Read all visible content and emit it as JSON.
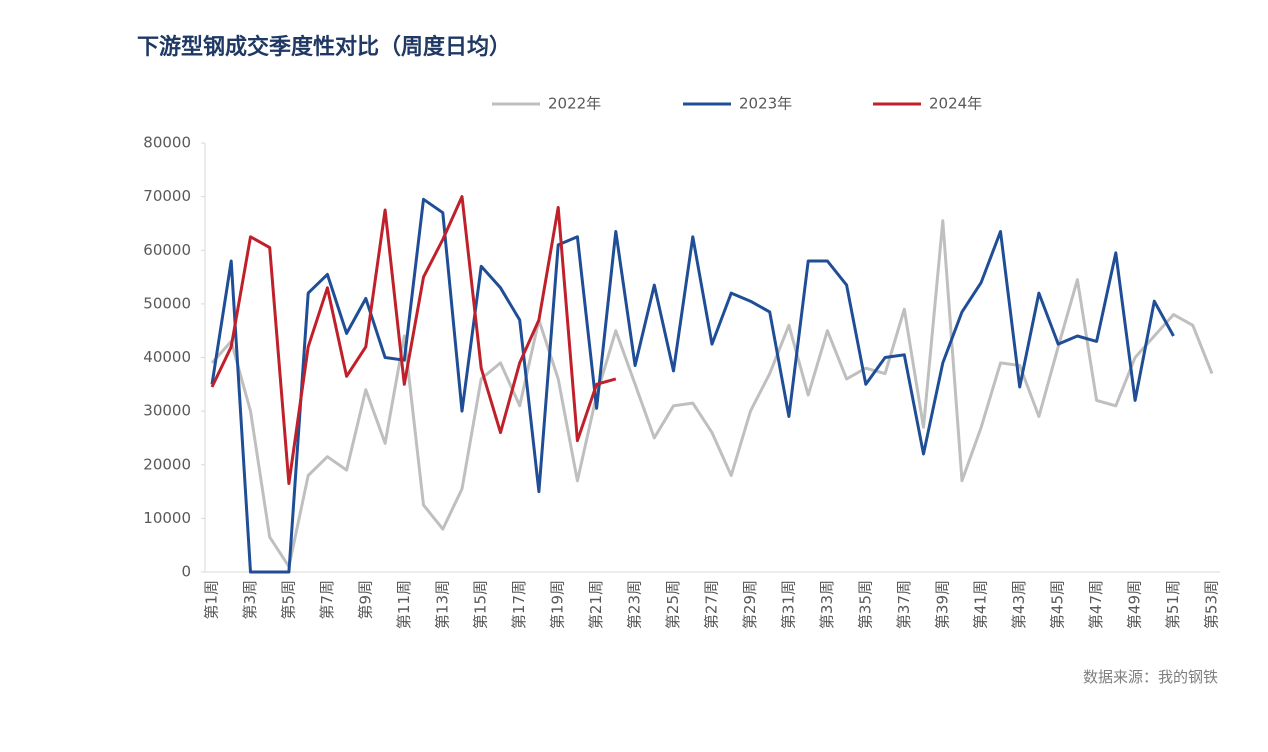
{
  "chart_data": {
    "type": "line",
    "title": "下游型钢成交季度性对比（周度日均）",
    "source": "数据来源：我的钢铁",
    "categories": [
      "第1周",
      null,
      "第3周",
      null,
      "第5周",
      null,
      "第7周",
      null,
      "第9周",
      null,
      "第11周",
      null,
      "第13周",
      null,
      "第15周",
      null,
      "第17周",
      null,
      "第19周",
      null,
      "第21周",
      null,
      "第23周",
      null,
      "第25周",
      null,
      "第27周",
      null,
      "第29周",
      null,
      "第31周",
      null,
      "第33周",
      null,
      "第35周",
      null,
      "第37周",
      null,
      "第39周",
      null,
      "第41周",
      null,
      "第43周",
      null,
      "第45周",
      null,
      "第47周",
      null,
      "第49周",
      null,
      "第51周",
      null,
      "第53周"
    ],
    "ylim": [
      0,
      80000
    ],
    "yticks": [
      0,
      10000,
      20000,
      30000,
      40000,
      50000,
      60000,
      70000,
      80000
    ],
    "legend": "top",
    "series": [
      {
        "name": "2022年",
        "color": "#bfbfbf",
        "values": [
          39000,
          43000,
          30000,
          6500,
          1000,
          18000,
          21500,
          19000,
          34000,
          24000,
          44000,
          12500,
          8000,
          15500,
          36000,
          39000,
          31000,
          47000,
          36000,
          17000,
          33000,
          45000,
          35000,
          25000,
          31000,
          31500,
          26000,
          18000,
          30000,
          37000,
          46000,
          33000,
          45000,
          36000,
          38000,
          37000,
          49000,
          27000,
          65500,
          17000,
          27000,
          39000,
          38500,
          29000,
          42000,
          54500,
          32000,
          31000,
          40000,
          44000,
          48000,
          46000,
          37000
        ]
      },
      {
        "name": "2023年",
        "color": "#1f4e96",
        "values": [
          35000,
          58000,
          0,
          0,
          0,
          52000,
          55500,
          44500,
          51000,
          40000,
          39500,
          69500,
          67000,
          30000,
          57000,
          53000,
          47000,
          15000,
          61000,
          62500,
          30500,
          63500,
          38500,
          53500,
          37500,
          62500,
          42500,
          52000,
          50500,
          48500,
          29000,
          58000,
          58000,
          53500,
          35000,
          40000,
          40500,
          22000,
          39000,
          48500,
          54000,
          63500,
          34500,
          52000,
          42500,
          44000,
          43000,
          59500,
          32000,
          50500,
          44000,
          null,
          null
        ]
      },
      {
        "name": "2024年",
        "color": "#c0202a",
        "values": [
          34500,
          42000,
          62500,
          60500,
          16500,
          42000,
          53000,
          36500,
          42000,
          67500,
          35000,
          55000,
          62000,
          70000,
          38000,
          26000,
          39000,
          47000,
          68000,
          24500,
          35000,
          36000,
          null,
          null,
          null,
          null,
          null,
          null,
          null,
          null,
          null,
          null,
          null,
          null,
          null,
          null,
          null,
          null,
          null,
          null,
          null,
          null,
          null,
          null,
          null,
          null,
          null,
          null,
          null,
          null,
          null,
          null,
          null
        ]
      }
    ]
  }
}
